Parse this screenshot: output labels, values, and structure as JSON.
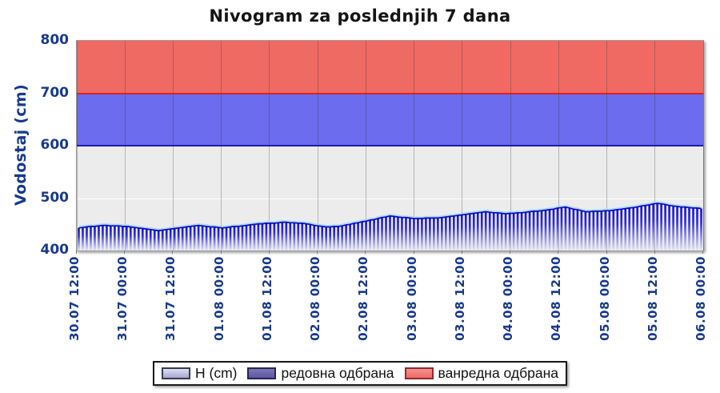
{
  "title": "Nivogram za poslednjih 7 dana",
  "y_axis": {
    "label": "Vodostaj (cm)",
    "ticks": [
      800,
      700,
      600,
      500,
      400
    ]
  },
  "legend": {
    "items": [
      {
        "label": "H (cm)",
        "swatch": "water-level-bar-sample",
        "fill_top": "#dfdff0",
        "fill_bottom": "#a6a6ce",
        "border": "#3a3a55"
      },
      {
        "label": "редовна одбрана",
        "swatch": "regular-defense-sample",
        "fill_top": "#7d76b8",
        "fill_bottom": "#5d56a2",
        "border": "#26264a"
      },
      {
        "label": "ванредна одбрана",
        "swatch": "emergency-defense-sample",
        "fill_top": "#f49290",
        "fill_bottom": "#ee6a66",
        "border": "#8f2a2a"
      }
    ]
  },
  "colors": {
    "axis_text": "#17398c",
    "title_text": "#141414",
    "plot_background": "#ececec",
    "bar_top": "#1414c8",
    "bar_mid": "#2e2ed6",
    "bar_fade": "#e4e4f8",
    "envelope": "#0a0ac0",
    "envelope_highlight": "#a8daf6",
    "gridline": "rgba(50,50,50,0.30)"
  },
  "chart_data": {
    "type": "bar",
    "title": "Nivogram za poslednjih 7 dana",
    "xlabel": "",
    "ylabel": "Vodostaj (cm)",
    "ylim": [
      400,
      800
    ],
    "grid": {
      "vertical": true,
      "horizontal_at": [
        500
      ]
    },
    "legend_position": "bottom",
    "x_tick_labels": [
      "30.07 12:00",
      "31.07 00:00",
      "31.07 12:00",
      "01.08 00:00",
      "01.08 12:00",
      "02.08 00:00",
      "02.08 12:00",
      "03.08 00:00",
      "03.08 12:00",
      "04.08 00:00",
      "04.08 12:00",
      "05.08 00:00",
      "05.08 12:00",
      "06.08 00:00"
    ],
    "x_tick_interval_hours": 12,
    "bands": [
      {
        "name": "редовна одбрана",
        "from": 600,
        "to": 700,
        "color": "#6c6cee",
        "line_color": "#1a1ab4"
      },
      {
        "name": "ванредна одбрана",
        "from": 700,
        "to": 800,
        "color": "#f06a64",
        "line_color": "#e32020"
      }
    ],
    "series": [
      {
        "name": "H (cm)",
        "unit": "cm",
        "start": "30.07 12:00",
        "step_hours": 1,
        "values": [
          443,
          444,
          445,
          446,
          446,
          447,
          448,
          448,
          447,
          447,
          447,
          446,
          446,
          445,
          444,
          443,
          442,
          441,
          440,
          439,
          438,
          439,
          440,
          441,
          442,
          443,
          444,
          445,
          446,
          447,
          448,
          447,
          446,
          445,
          445,
          444,
          443,
          444,
          445,
          446,
          446,
          447,
          448,
          449,
          450,
          451,
          451,
          452,
          452,
          452,
          453,
          454,
          454,
          453,
          453,
          452,
          452,
          451,
          450,
          448,
          447,
          446,
          445,
          445,
          446,
          446,
          447,
          449,
          450,
          452,
          453,
          455,
          456,
          458,
          459,
          461,
          463,
          464,
          466,
          465,
          464,
          463,
          463,
          462,
          461,
          461,
          461,
          462,
          462,
          462,
          462,
          463,
          464,
          465,
          466,
          467,
          468,
          469,
          470,
          471,
          472,
          473,
          474,
          473,
          472,
          472,
          471,
          470,
          471,
          471,
          472,
          472,
          473,
          474,
          475,
          475,
          476,
          477,
          478,
          479,
          481,
          482,
          483,
          481,
          479,
          478,
          476,
          474,
          474,
          475,
          475,
          475,
          476,
          476,
          477,
          478,
          479,
          480,
          481,
          482,
          483,
          485,
          486,
          487,
          489,
          490,
          489,
          488,
          486,
          485,
          484,
          483,
          483,
          482,
          481,
          481,
          480
        ]
      }
    ]
  }
}
